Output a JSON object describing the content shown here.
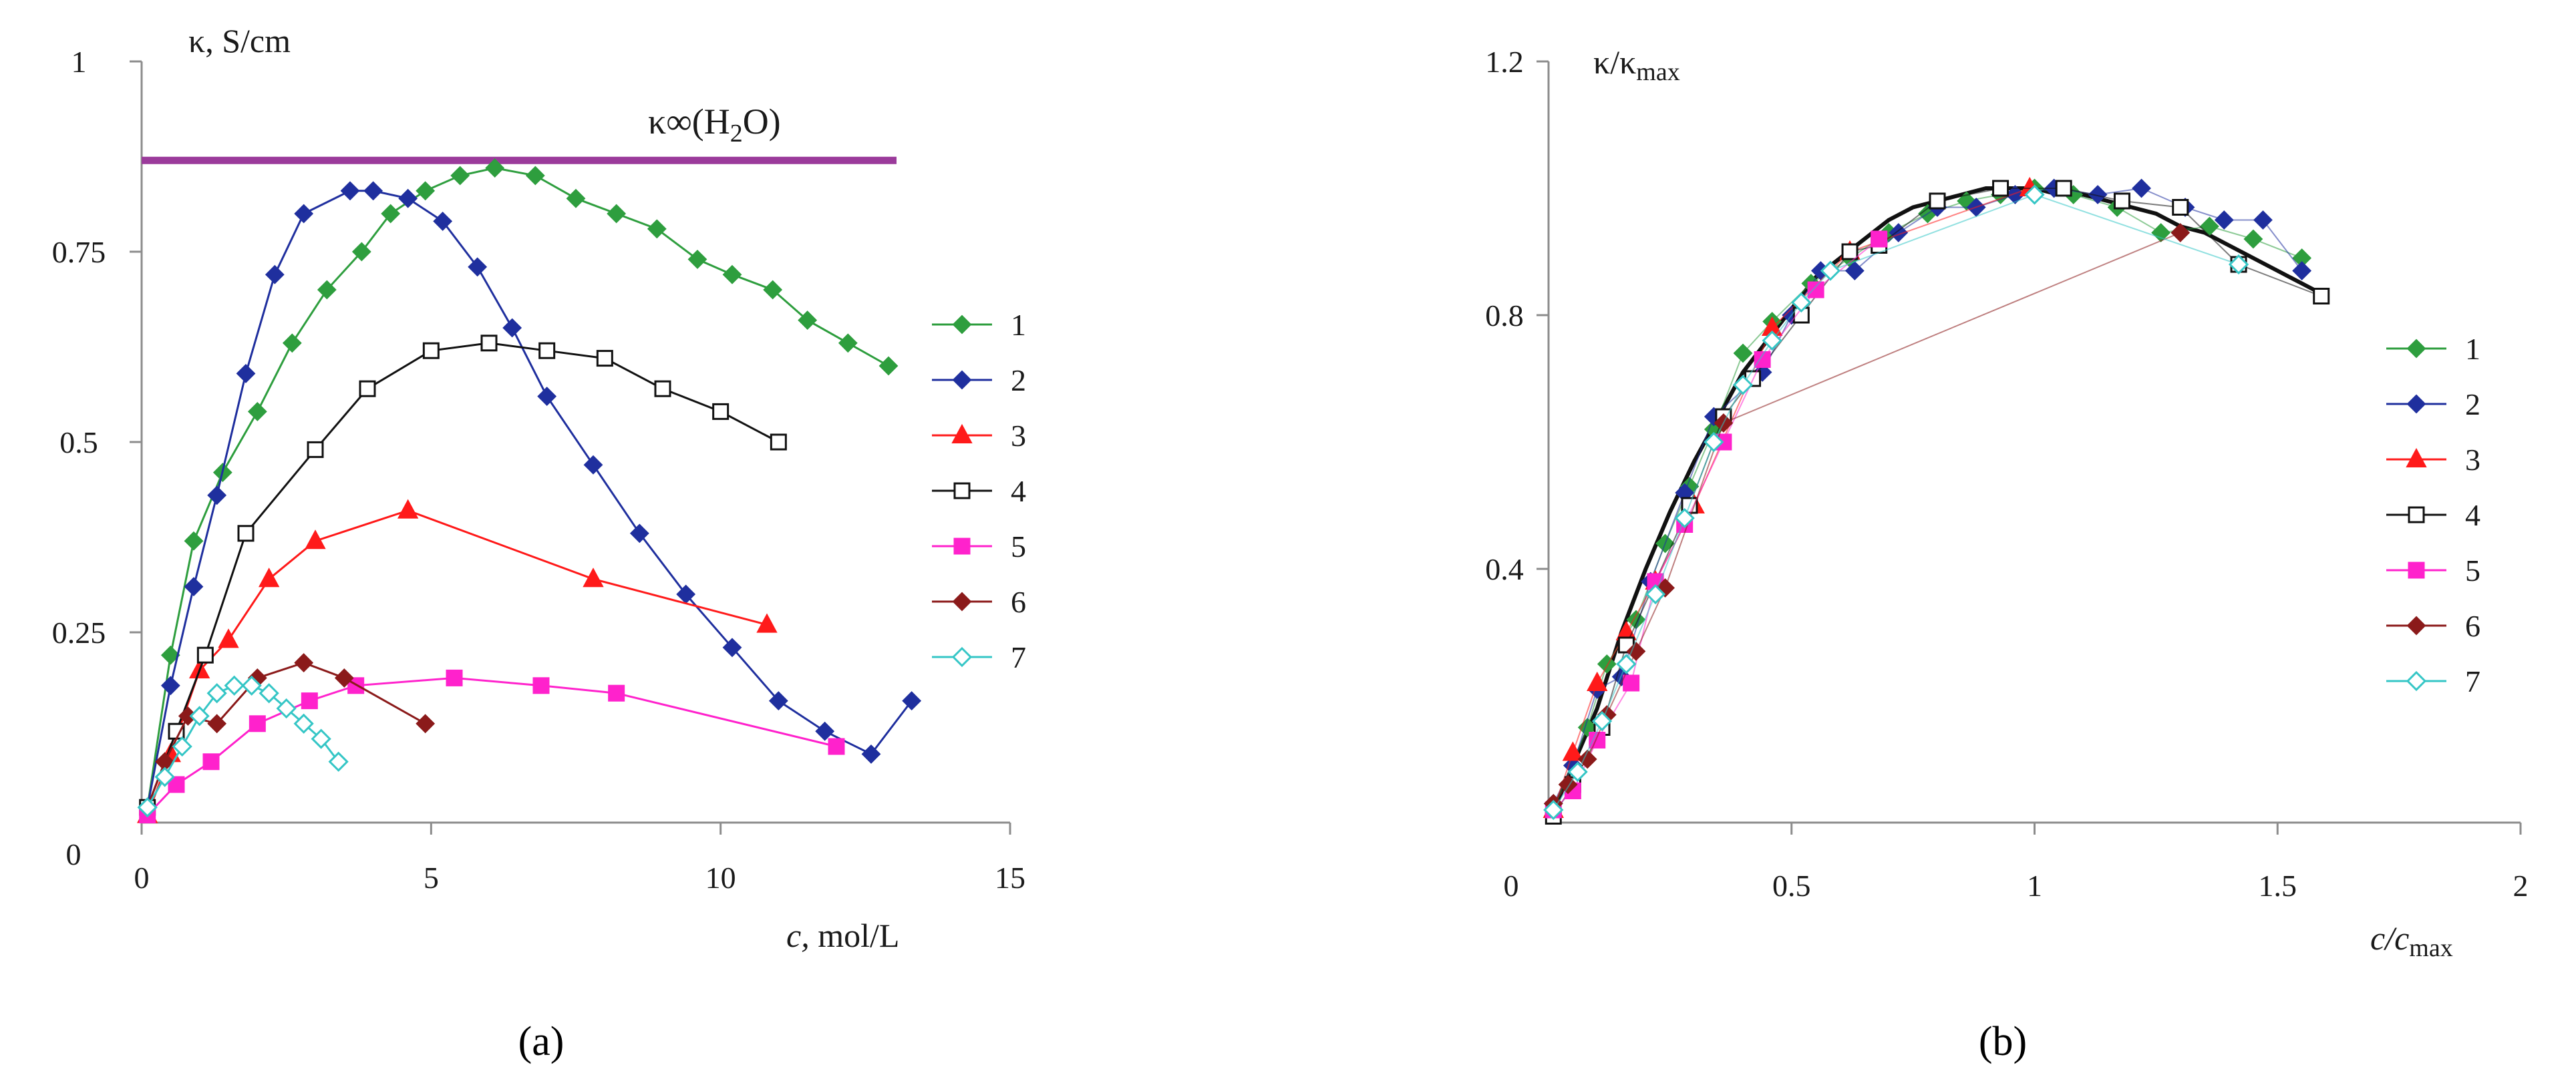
{
  "chart_data": [
    {
      "panel": "a",
      "type": "line",
      "title": "",
      "ylabel": "κ, S/cm",
      "xlabel": "c, mol/L",
      "xlim": [
        0,
        15
      ],
      "ylim": [
        0,
        1
      ],
      "xticks": [
        0,
        5,
        10,
        15
      ],
      "yticks": [
        0.25,
        0.5,
        0.75,
        1
      ],
      "xtick_labels": [
        "0",
        "5",
        "10",
        "15"
      ],
      "ytick_labels": [
        "0.25",
        "0.5",
        "0.75",
        "1"
      ],
      "origin_label": "0",
      "reference_line": {
        "label": "κ∞(H2O)",
        "y": 0.87,
        "color": "#9b3b9b"
      },
      "series": [
        {
          "name": "1",
          "color": "#2e9e3e",
          "marker": "diamond",
          "x": [
            0.1,
            0.5,
            0.9,
            1.4,
            2.0,
            2.6,
            3.2,
            3.8,
            4.3,
            4.9,
            5.5,
            6.1,
            6.8,
            7.5,
            8.2,
            8.9,
            9.6,
            10.2,
            10.9,
            11.5,
            12.2,
            12.9
          ],
          "y": [
            0.02,
            0.22,
            0.37,
            0.46,
            0.54,
            0.63,
            0.7,
            0.75,
            0.8,
            0.83,
            0.85,
            0.86,
            0.85,
            0.82,
            0.8,
            0.78,
            0.74,
            0.72,
            0.7,
            0.66,
            0.63,
            0.6
          ]
        },
        {
          "name": "2",
          "color": "#1f2f9e",
          "marker": "diamond",
          "x": [
            0.1,
            0.5,
            0.9,
            1.3,
            1.8,
            2.3,
            2.8,
            3.6,
            4.0,
            4.6,
            5.2,
            5.8,
            6.4,
            7.0,
            7.8,
            8.6,
            9.4,
            10.2,
            11.0,
            11.8,
            12.6,
            13.3
          ],
          "y": [
            0.02,
            0.18,
            0.31,
            0.43,
            0.59,
            0.72,
            0.8,
            0.83,
            0.83,
            0.82,
            0.79,
            0.73,
            0.65,
            0.56,
            0.47,
            0.38,
            0.3,
            0.23,
            0.16,
            0.12,
            0.09,
            0.16
          ]
        },
        {
          "name": "3",
          "color": "#ff1a1a",
          "marker": "triangle",
          "x": [
            0.1,
            0.5,
            1.0,
            1.5,
            2.2,
            3.0,
            4.6,
            7.8,
            10.8
          ],
          "y": [
            0.01,
            0.09,
            0.2,
            0.24,
            0.32,
            0.37,
            0.41,
            0.32,
            0.26
          ]
        },
        {
          "name": "4",
          "color": "#111111",
          "marker": "square",
          "x": [
            0.1,
            0.6,
            1.1,
            1.8,
            3.0,
            3.9,
            5.0,
            6.0,
            7.0,
            8.0,
            9.0,
            10.0,
            11.0
          ],
          "y": [
            0.02,
            0.12,
            0.22,
            0.38,
            0.49,
            0.57,
            0.62,
            0.63,
            0.62,
            0.61,
            0.57,
            0.54,
            0.5
          ]
        },
        {
          "name": "5",
          "color": "#ff22cc",
          "marker": "square",
          "x": [
            0.1,
            0.6,
            1.2,
            2.0,
            2.9,
            3.7,
            5.4,
            6.9,
            8.2,
            12.0
          ],
          "y": [
            0.01,
            0.05,
            0.08,
            0.13,
            0.16,
            0.18,
            0.19,
            0.18,
            0.17,
            0.1
          ]
        },
        {
          "name": "6",
          "color": "#8b1a1a",
          "marker": "diamond",
          "x": [
            0.1,
            0.4,
            0.8,
            1.3,
            2.0,
            2.8,
            3.5,
            4.9
          ],
          "y": [
            0.02,
            0.08,
            0.14,
            0.13,
            0.19,
            0.21,
            0.19,
            0.13
          ]
        },
        {
          "name": "7",
          "color": "#35c6c6",
          "marker": "open-diamond",
          "x": [
            0.1,
            0.4,
            0.7,
            1.0,
            1.3,
            1.6,
            1.9,
            2.2,
            2.5,
            2.8,
            3.1,
            3.4
          ],
          "y": [
            0.02,
            0.06,
            0.1,
            0.14,
            0.17,
            0.18,
            0.18,
            0.17,
            0.15,
            0.13,
            0.11,
            0.08
          ]
        }
      ]
    },
    {
      "panel": "b",
      "type": "line",
      "title": "",
      "ylabel": "κ/κmax",
      "xlabel": "c/cmax",
      "xlim": [
        0,
        2
      ],
      "ylim": [
        0,
        1.2
      ],
      "xticks": [
        0.5,
        1,
        1.5,
        2
      ],
      "yticks": [
        0.4,
        0.8,
        1.2
      ],
      "xtick_labels": [
        "0.5",
        "1",
        "1.5",
        "2"
      ],
      "ytick_labels": [
        "0.4",
        "0.8",
        "1.2"
      ],
      "origin_label": "0",
      "fit_curve": {
        "x": [
          0.0,
          0.05,
          0.1,
          0.15,
          0.2,
          0.25,
          0.3,
          0.35,
          0.4,
          0.45,
          0.5,
          0.55,
          0.6,
          0.65,
          0.7,
          0.75,
          0.8,
          0.85,
          0.9,
          0.95,
          1.0,
          1.05,
          1.1,
          1.15,
          1.2,
          1.25,
          1.3,
          1.35,
          1.4,
          1.45,
          1.5,
          1.55,
          1.6
        ],
        "y": [
          0.0,
          0.09,
          0.18,
          0.3,
          0.4,
          0.49,
          0.57,
          0.64,
          0.71,
          0.76,
          0.81,
          0.86,
          0.89,
          0.92,
          0.95,
          0.97,
          0.98,
          0.99,
          1.0,
          1.0,
          1.0,
          0.99,
          0.99,
          0.98,
          0.97,
          0.96,
          0.94,
          0.93,
          0.91,
          0.89,
          0.87,
          0.85,
          0.83
        ]
      },
      "series": [
        {
          "name": "1",
          "color": "#2e9e3e",
          "marker": "diamond",
          "x": [
            0.01,
            0.08,
            0.12,
            0.18,
            0.24,
            0.29,
            0.34,
            0.4,
            0.46,
            0.54,
            0.62,
            0.7,
            0.78,
            0.86,
            0.93,
            1.0,
            1.08,
            1.17,
            1.26,
            1.36,
            1.45,
            1.55
          ],
          "y": [
            0.02,
            0.15,
            0.25,
            0.32,
            0.44,
            0.53,
            0.62,
            0.74,
            0.79,
            0.85,
            0.89,
            0.93,
            0.96,
            0.98,
            0.99,
            1.0,
            0.99,
            0.97,
            0.93,
            0.94,
            0.92,
            0.89
          ]
        },
        {
          "name": "2",
          "color": "#1f2f9e",
          "marker": "diamond",
          "x": [
            0.01,
            0.05,
            0.1,
            0.15,
            0.21,
            0.28,
            0.34,
            0.44,
            0.5,
            0.56,
            0.63,
            0.72,
            0.8,
            0.88,
            0.96,
            1.04,
            1.13,
            1.22,
            1.31,
            1.39,
            1.47,
            1.55
          ],
          "y": [
            0.03,
            0.09,
            0.21,
            0.23,
            0.38,
            0.52,
            0.64,
            0.71,
            0.8,
            0.87,
            0.87,
            0.93,
            0.97,
            0.97,
            0.99,
            1.0,
            0.99,
            1.0,
            0.97,
            0.95,
            0.95,
            0.87
          ]
        },
        {
          "name": "3",
          "color": "#ff1a1a",
          "marker": "triangle",
          "x": [
            0.01,
            0.05,
            0.1,
            0.16,
            0.22,
            0.3,
            0.46,
            0.62,
            0.99
          ],
          "y": [
            0.02,
            0.11,
            0.22,
            0.3,
            0.38,
            0.5,
            0.78,
            0.9,
            1.0
          ]
        },
        {
          "name": "4",
          "color": "#111111",
          "marker": "square",
          "x": [
            0.01,
            0.05,
            0.11,
            0.16,
            0.22,
            0.29,
            0.36,
            0.42,
            0.52,
            0.62,
            0.68,
            0.8,
            0.93,
            1.06,
            1.18,
            1.3,
            1.42,
            1.59
          ],
          "y": [
            0.01,
            0.06,
            0.15,
            0.28,
            0.38,
            0.5,
            0.64,
            0.7,
            0.8,
            0.9,
            0.91,
            0.98,
            1.0,
            1.0,
            0.98,
            0.97,
            0.88,
            0.83
          ]
        },
        {
          "name": "5",
          "color": "#ff22cc",
          "marker": "square",
          "x": [
            0.01,
            0.05,
            0.1,
            0.17,
            0.22,
            0.28,
            0.36,
            0.44,
            0.55,
            0.68
          ],
          "y": [
            0.02,
            0.05,
            0.13,
            0.22,
            0.38,
            0.47,
            0.6,
            0.73,
            0.84,
            0.92
          ]
        },
        {
          "name": "6",
          "color": "#8b1a1a",
          "marker": "diamond",
          "x": [
            0.01,
            0.04,
            0.08,
            0.12,
            0.18,
            0.24,
            0.36,
            1.3
          ],
          "y": [
            0.03,
            0.06,
            0.1,
            0.17,
            0.27,
            0.37,
            0.63,
            0.93
          ]
        },
        {
          "name": "7",
          "color": "#35c6c6",
          "marker": "open-diamond",
          "x": [
            0.01,
            0.06,
            0.11,
            0.16,
            0.22,
            0.28,
            0.34,
            0.4,
            0.46,
            0.52,
            0.58,
            1.0,
            1.42
          ],
          "y": [
            0.02,
            0.08,
            0.16,
            0.25,
            0.36,
            0.48,
            0.6,
            0.69,
            0.76,
            0.82,
            0.87,
            0.99,
            0.88
          ]
        }
      ]
    }
  ],
  "captions": {
    "a": "(a)",
    "b": "(b)"
  }
}
